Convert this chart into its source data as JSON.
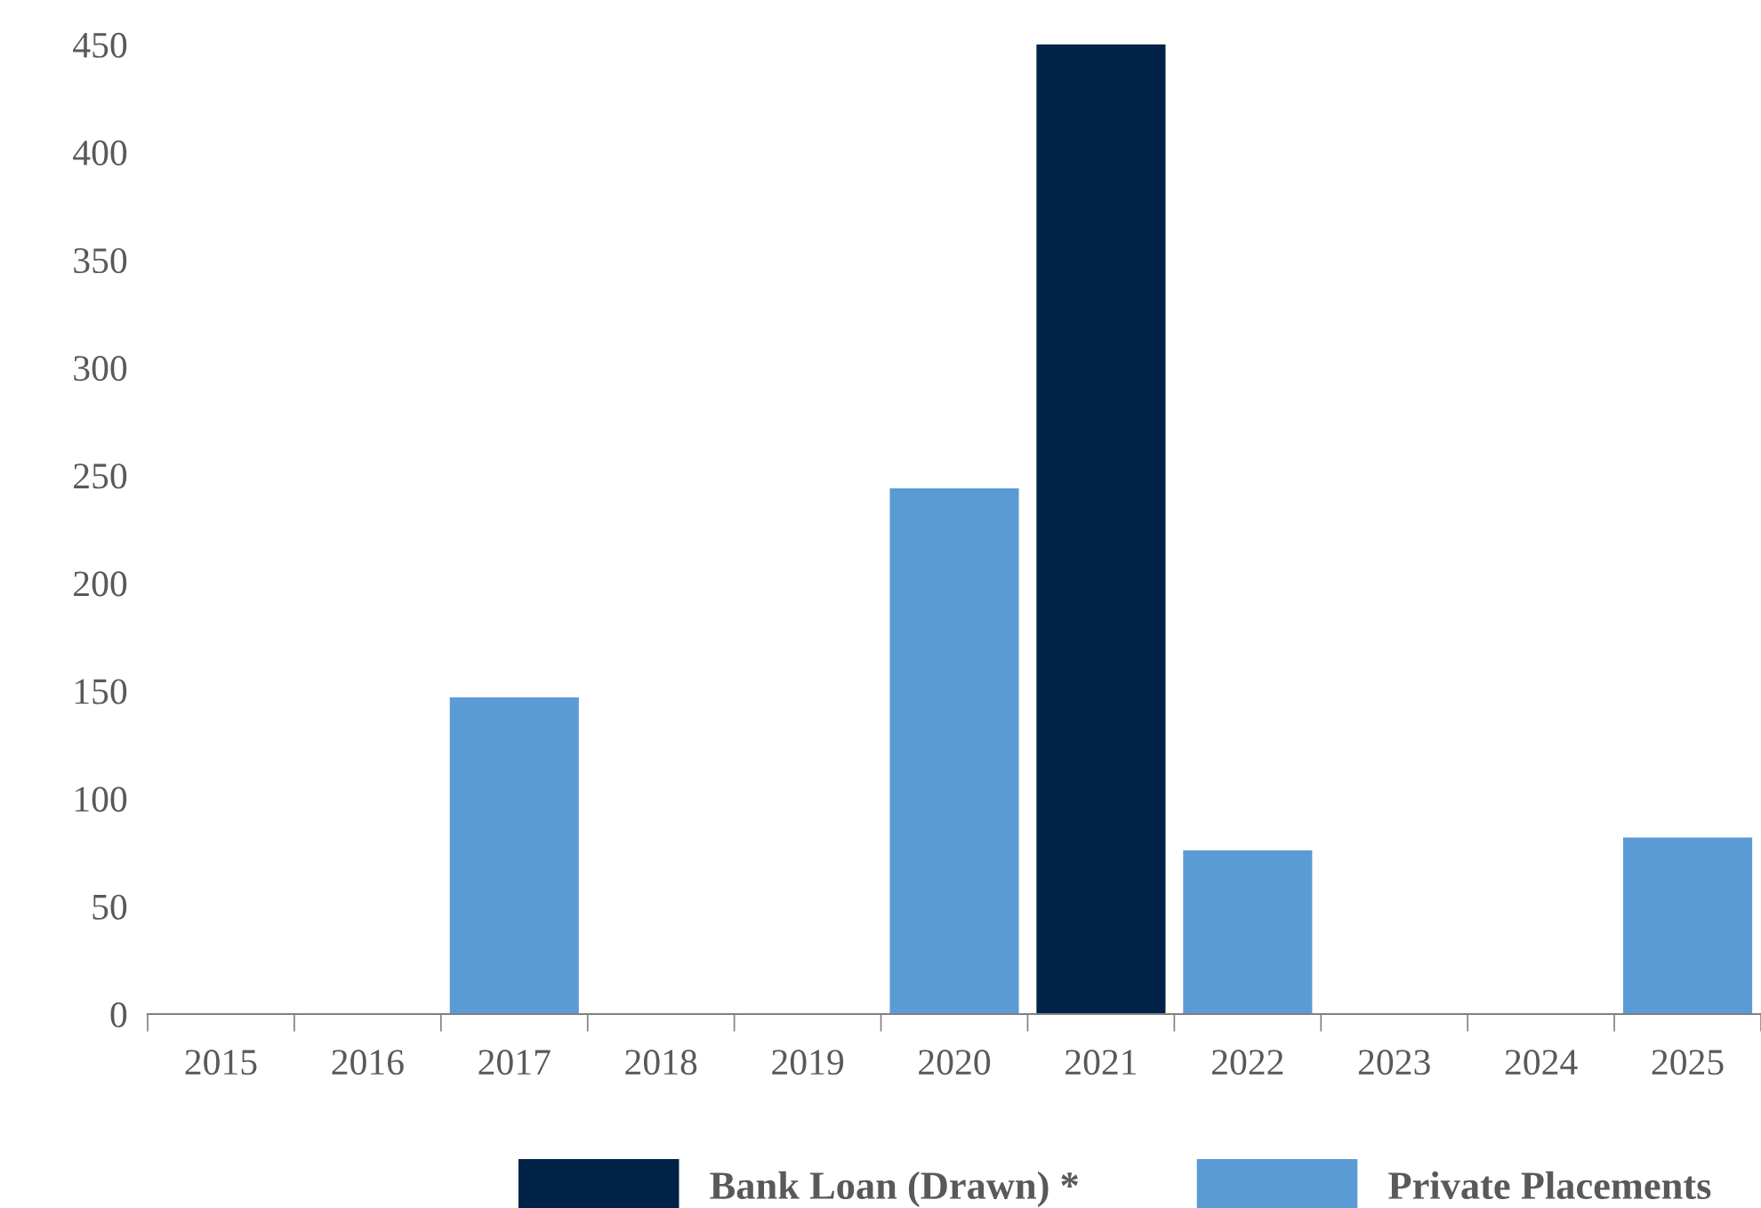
{
  "chart_data": {
    "type": "bar",
    "categories": [
      "2015",
      "2016",
      "2017",
      "2018",
      "2019",
      "2020",
      "2021",
      "2022",
      "2023",
      "2024",
      "2025"
    ],
    "series": [
      {
        "name": "Bank Loan (Drawn) *",
        "color": "#002347",
        "values": [
          null,
          null,
          null,
          null,
          null,
          null,
          450,
          null,
          null,
          null,
          null
        ]
      },
      {
        "name": "Private Placements",
        "color": "#5b9bd5",
        "values": [
          null,
          null,
          147,
          null,
          null,
          244,
          null,
          76,
          null,
          null,
          82
        ]
      }
    ],
    "ylim": [
      0,
      450
    ],
    "yticks": [
      0,
      50,
      100,
      150,
      200,
      250,
      300,
      350,
      400,
      450
    ],
    "grid": false,
    "legend": "bottom"
  }
}
